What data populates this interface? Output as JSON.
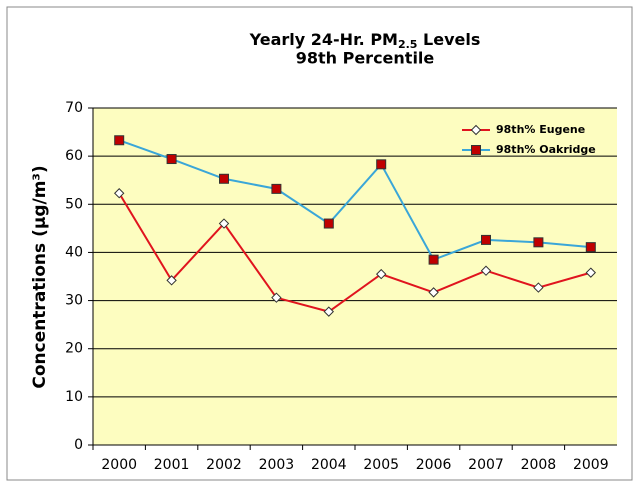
{
  "chart_data": {
    "type": "line",
    "title": "Yearly 24-Hr. PM",
    "title_subscript": "2.5",
    "title_suffix": " Levels",
    "subtitle": "98th Percentile",
    "y_label": "Concentrations (µg/m³)",
    "categories": [
      "2000",
      "2001",
      "2002",
      "2003",
      "2004",
      "2005",
      "2006",
      "2007",
      "2008",
      "2009"
    ],
    "series": [
      {
        "name": "98th% Eugene",
        "color": "#e0141e",
        "marker_color": "#ffffff",
        "marker": "diamond",
        "values": [
          52.3,
          34.2,
          46.0,
          30.6,
          27.7,
          35.5,
          31.7,
          36.2,
          32.7,
          35.8
        ]
      },
      {
        "name": "98th% Oakridge",
        "color": "#3aa6d8",
        "marker_color": "#c00000",
        "marker": "square",
        "values": [
          63.3,
          59.4,
          55.3,
          53.2,
          46.0,
          58.3,
          38.5,
          42.6,
          42.1,
          41.1
        ]
      }
    ],
    "ylim": [
      0,
      70
    ],
    "yticks": [
      0,
      10,
      20,
      30,
      40,
      50,
      60,
      70
    ],
    "grid": true,
    "plot_background": "#fdfdc0",
    "legend": "top-right"
  }
}
